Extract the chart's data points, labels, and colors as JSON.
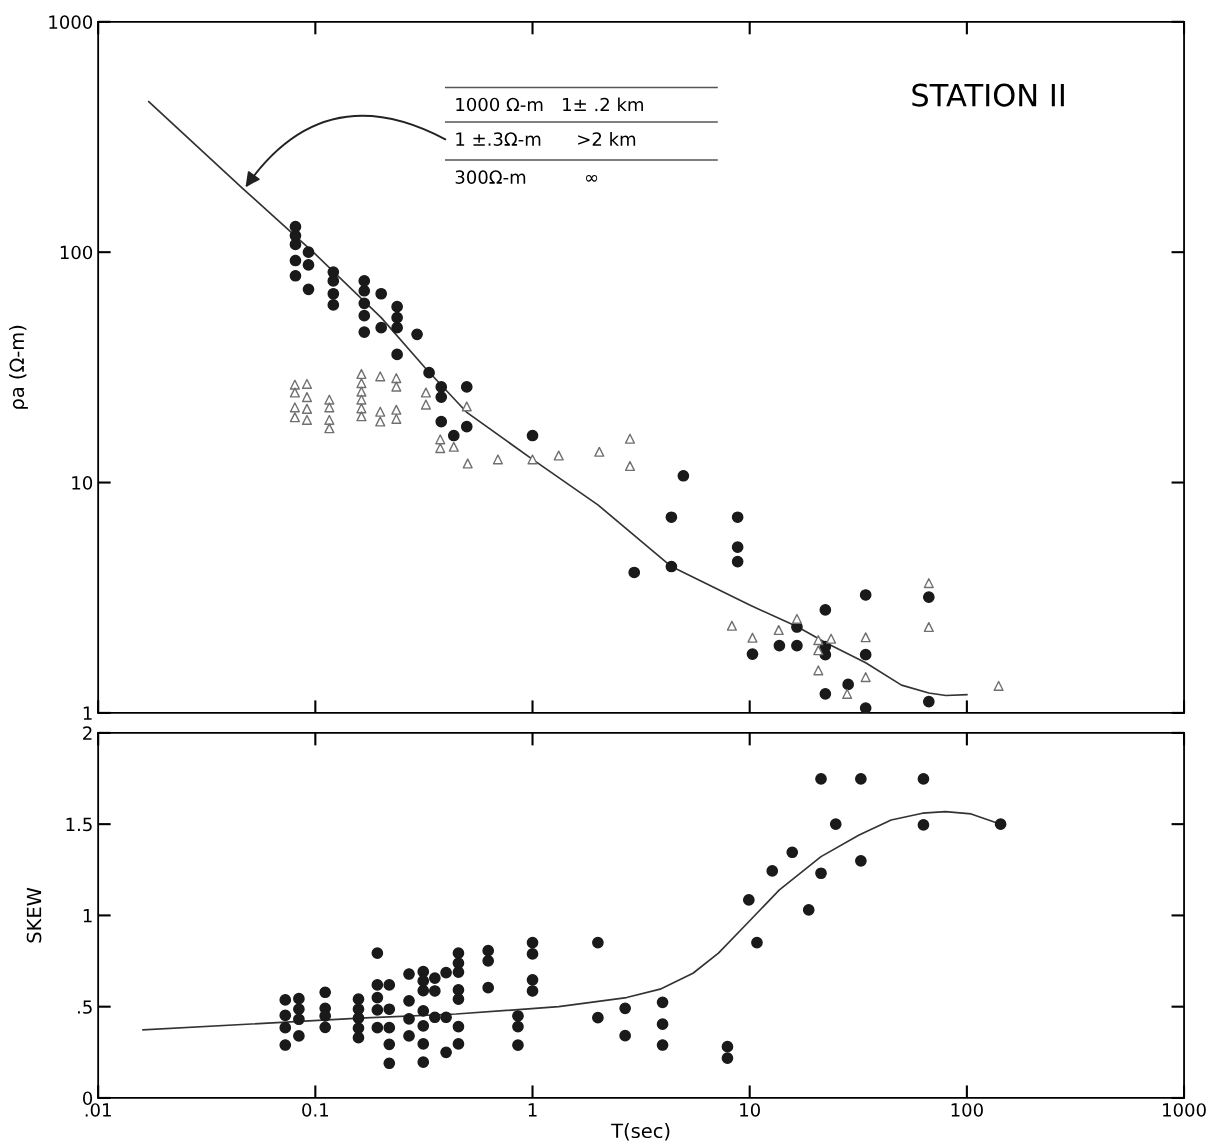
{
  "chart_data": [
    {
      "type": "scatter",
      "title": "STATION II",
      "ylabel": "ρa (Ω-m)",
      "log": "xy",
      "xlim": [
        0.01,
        1000
      ],
      "ylim": [
        1,
        1000
      ],
      "xticks": [
        {
          "value": 0.01,
          "label": null
        },
        {
          "value": 0.1,
          "label": null
        },
        {
          "value": 1,
          "label": null
        },
        {
          "value": 10,
          "label": null
        },
        {
          "value": 100,
          "label": null
        },
        {
          "value": 1000,
          "label": null
        }
      ],
      "yticks": [
        1,
        10,
        100,
        1000
      ],
      "tick_labels": "y",
      "grid": false,
      "legend": false,
      "annotations": [
        "1000 Ω-m   1± .2 km",
        {
          "text": "1 ±.3Ω-m      >2 km",
          "x": 0.0469,
          "y": 187
        },
        "300Ω-m          ∞"
      ],
      "series": [
        {
          "marker": "circle",
          "color": "#1a1a1a",
          "x": [
            0.081,
            0.081,
            0.081,
            0.081,
            0.081,
            0.093,
            0.093,
            0.093,
            0.121,
            0.121,
            0.121,
            0.121,
            0.168,
            0.168,
            0.168,
            0.168,
            0.168,
            0.201,
            0.201,
            0.238,
            0.238,
            0.238,
            0.238,
            0.294,
            0.334,
            0.38,
            0.38,
            0.38,
            0.434,
            0.498,
            0.498,
            1.0,
            4.95,
            2.94,
            4.36,
            4.36,
            8.8,
            8.8,
            8.8,
            10.3,
            13.7,
            16.5,
            16.5,
            22.3,
            22.3,
            22.3,
            22.3,
            28.4,
            34.2,
            34.2,
            34.2,
            66.8,
            66.8
          ],
          "values": [
            129,
            118,
            108,
            92,
            79,
            100,
            88,
            69,
            82,
            75,
            66,
            59,
            75,
            68,
            60,
            53,
            45,
            66,
            47,
            58,
            52,
            47,
            36,
            44,
            30,
            26,
            23.5,
            18.4,
            16,
            26,
            17.5,
            16,
            10.7,
            4.07,
            7.07,
            4.32,
            7.07,
            5.24,
            4.54,
            1.8,
            1.96,
            2.36,
            1.96,
            2.8,
            1.94,
            1.79,
            1.21,
            1.33,
            3.25,
            1.79,
            1.05,
            3.18,
            1.12
          ]
        },
        {
          "marker": "triangle",
          "color": "#707070",
          "x": [
            0.0805,
            0.0805,
            0.0805,
            0.0805,
            0.0915,
            0.0915,
            0.0915,
            0.0915,
            0.116,
            0.116,
            0.116,
            0.116,
            0.163,
            0.163,
            0.163,
            0.163,
            0.163,
            0.163,
            0.199,
            0.199,
            0.199,
            0.236,
            0.236,
            0.236,
            0.236,
            0.323,
            0.323,
            0.376,
            0.376,
            0.434,
            0.498,
            0.503,
            0.693,
            1.0,
            1.32,
            2.03,
            2.81,
            2.81,
            8.28,
            10.3,
            13.6,
            16.5,
            20.7,
            20.7,
            20.7,
            23.7,
            28.1,
            34.2,
            34.2,
            66.8,
            66.8,
            140
          ],
          "values": [
            26.6,
            24.6,
            21.2,
            19.2,
            26.8,
            23.5,
            20.9,
            18.7,
            22.9,
            21.2,
            18.7,
            17.2,
            29.6,
            27,
            24.8,
            22.9,
            21,
            19.4,
            28.9,
            20.3,
            18.4,
            28.4,
            26.1,
            20.7,
            18.9,
            24.6,
            21.8,
            15.4,
            14.1,
            14.3,
            21.4,
            12.1,
            12.6,
            12.6,
            13.1,
            13.6,
            15.5,
            11.8,
            2.39,
            2.12,
            2.29,
            2.56,
            2.07,
            1.87,
            1.53,
            2.1,
            1.21,
            2.13,
            1.43,
            3.66,
            2.36,
            1.31
          ]
        },
        {
          "type": "line",
          "marker": "none",
          "line_style": "solid",
          "color": "#333333",
          "x": [
            0.0171,
            0.0469,
            0.1,
            0.201,
            0.32,
            0.5,
            1.0,
            2.0,
            4.36,
            10,
            16.5,
            22.3,
            34.2,
            50,
            66.8,
            80,
            100
          ],
          "values": [
            450,
            187,
            98,
            52,
            31.5,
            20.1,
            12.6,
            8.0,
            4.32,
            2.94,
            2.37,
            2.02,
            1.65,
            1.32,
            1.22,
            1.19,
            1.2
          ]
        }
      ]
    },
    {
      "type": "scatter",
      "xlabel": "T(sec)",
      "ylabel": "SKEW",
      "log": "x",
      "xlim": [
        0.01,
        1000
      ],
      "ylim": [
        0,
        2
      ],
      "xticks": [
        {
          "value": 0.01,
          "label": ".01"
        },
        {
          "value": 0.1,
          "label": "0.1"
        },
        {
          "value": 1,
          "label": "1"
        },
        {
          "value": 10,
          "label": "10"
        },
        {
          "value": 100,
          "label": "100"
        },
        {
          "value": 1000,
          "label": "1000"
        }
      ],
      "yticks": [
        0,
        {
          "value": 0.5,
          "label": ".5"
        },
        1,
        1.5,
        2
      ],
      "grid": false,
      "legend": false,
      "series": [
        {
          "marker": "circle",
          "color": "#1a1a1a",
          "x": [
            0.0727,
            0.0727,
            0.0727,
            0.0727,
            0.084,
            0.084,
            0.084,
            0.084,
            0.111,
            0.111,
            0.111,
            0.111,
            0.158,
            0.158,
            0.158,
            0.158,
            0.158,
            0.193,
            0.193,
            0.193,
            0.193,
            0.193,
            0.219,
            0.219,
            0.219,
            0.219,
            0.219,
            0.27,
            0.27,
            0.27,
            0.27,
            0.314,
            0.314,
            0.314,
            0.314,
            0.314,
            0.314,
            0.314,
            0.355,
            0.355,
            0.355,
            0.4,
            0.4,
            0.4,
            0.456,
            0.456,
            0.456,
            0.456,
            0.456,
            0.456,
            0.456,
            0.625,
            0.625,
            0.625,
            0.857,
            0.857,
            0.857,
            1.0,
            1.0,
            1.0,
            1.0,
            2.0,
            2.0,
            2.67,
            2.67,
            3.97,
            3.97,
            3.97,
            7.9,
            7.9,
            9.91,
            10.8,
            12.7,
            15.7,
            18.7,
            21.3,
            21.3,
            24.9,
            32.5,
            32.5,
            63.1,
            63.1,
            143
          ],
          "values": [
            0.537,
            0.453,
            0.385,
            0.29,
            0.544,
            0.486,
            0.431,
            0.34,
            0.579,
            0.491,
            0.449,
            0.387,
            0.541,
            0.486,
            0.437,
            0.382,
            0.33,
            0.793,
            0.619,
            0.55,
            0.482,
            0.385,
            0.619,
            0.486,
            0.385,
            0.294,
            0.19,
            0.679,
            0.532,
            0.433,
            0.34,
            0.692,
            0.641,
            0.588,
            0.477,
            0.395,
            0.296,
            0.196,
            0.656,
            0.586,
            0.442,
            0.687,
            0.442,
            0.25,
            0.793,
            0.738,
            0.689,
            0.592,
            0.541,
            0.391,
            0.296,
            0.807,
            0.751,
            0.604,
            0.449,
            0.391,
            0.289,
            0.851,
            0.789,
            0.647,
            0.586,
            0.851,
            0.44,
            0.491,
            0.341,
            0.524,
            0.404,
            0.29,
            0.281,
            0.218,
            1.085,
            0.851,
            1.244,
            1.346,
            1.03,
            1.748,
            1.231,
            1.5,
            1.748,
            1.299,
            1.748,
            1.496,
            1.5
          ]
        },
        {
          "type": "line",
          "marker": "none",
          "line_style": "solid",
          "color": "#333333",
          "x": [
            0.0161,
            0.16,
            0.445,
            1.32,
            2.71,
            3.87,
            5.48,
            7.18,
            9.75,
            13.7,
            21.3,
            31.9,
            44.8,
            62.5,
            79.7,
            104.6,
            143
          ],
          "values": [
            0.373,
            0.437,
            0.46,
            0.5,
            0.55,
            0.596,
            0.683,
            0.793,
            0.957,
            1.14,
            1.322,
            1.441,
            1.523,
            1.56,
            1.569,
            1.556,
            1.5
          ]
        }
      ]
    }
  ]
}
